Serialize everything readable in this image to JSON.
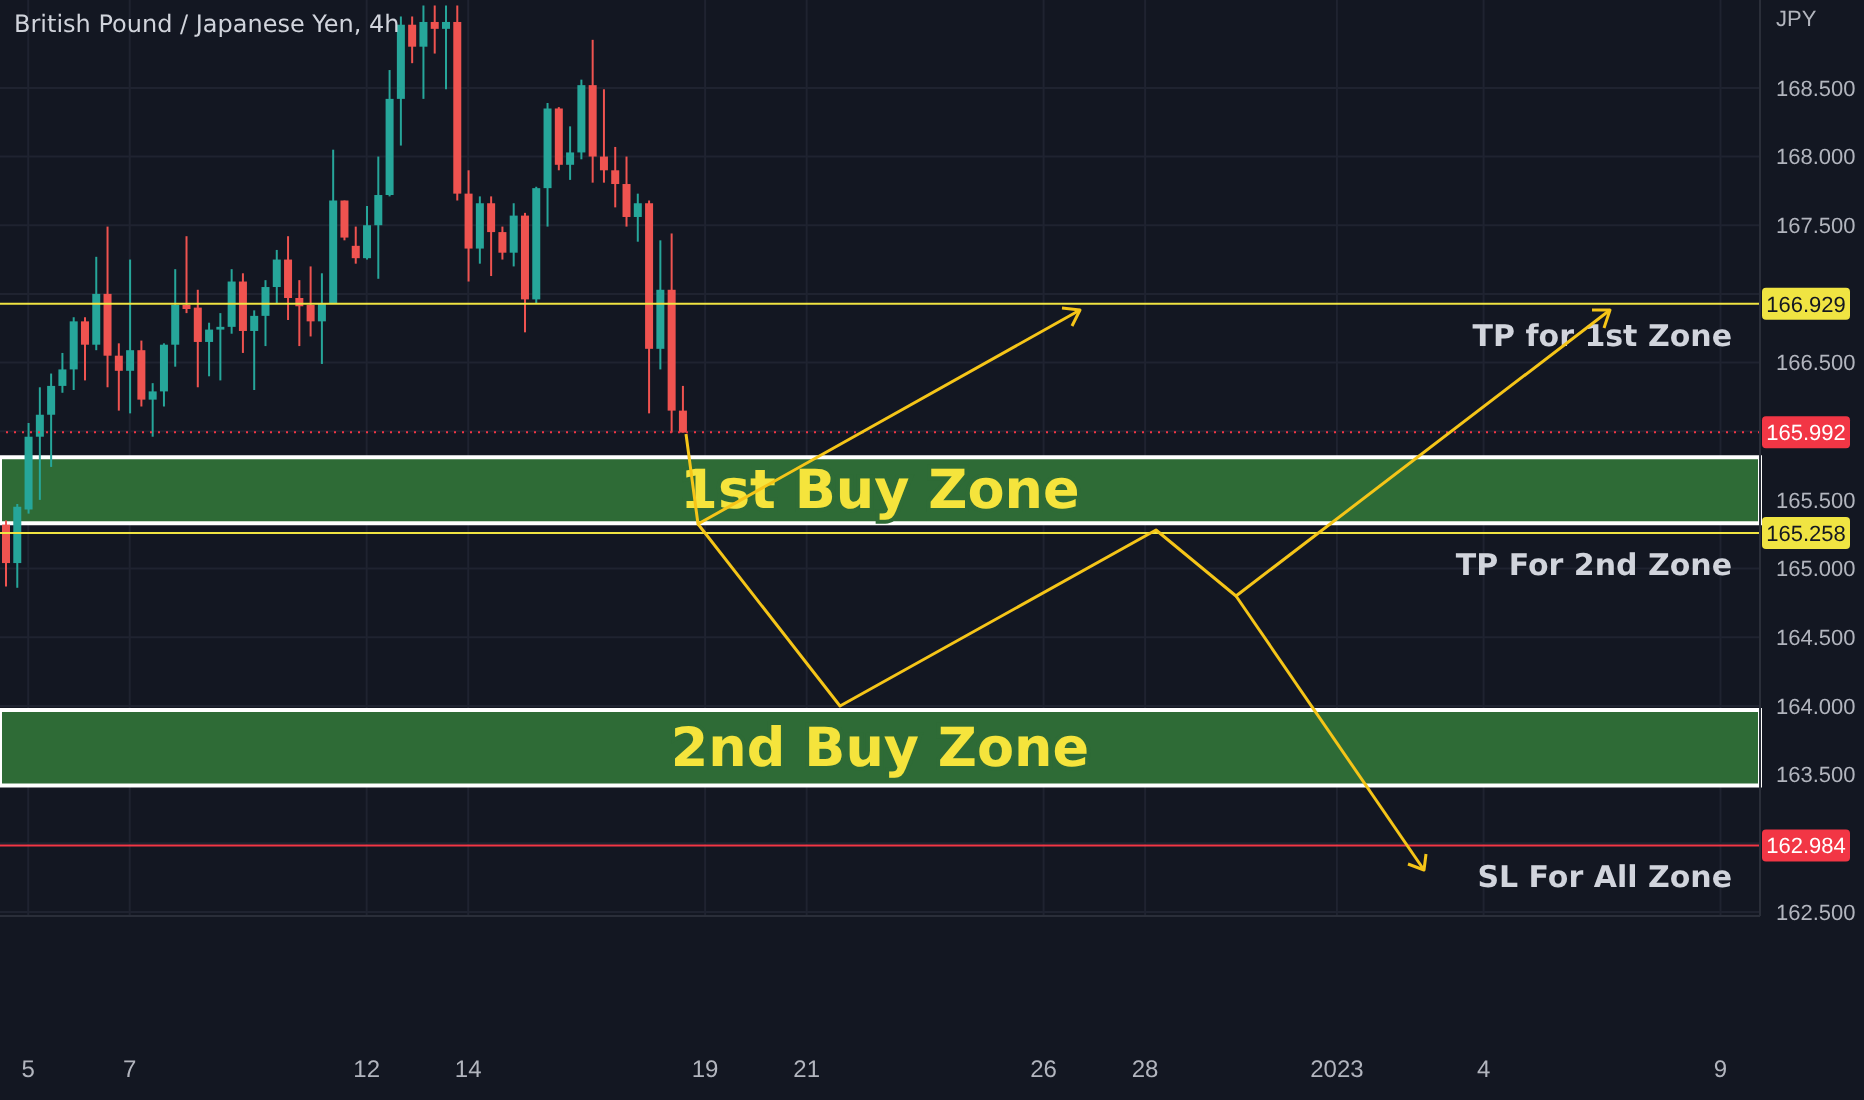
{
  "chart_data": {
    "type": "candlestick",
    "title": "British Pound / Japanese Yen, 4h",
    "ylabel": "JPY",
    "categories": [
      null,
      null,
      "5",
      null,
      null,
      null,
      null,
      null,
      null,
      null,
      null,
      "7",
      null,
      null,
      null,
      null,
      null,
      null,
      null,
      null,
      null,
      null,
      null,
      null,
      null,
      null,
      null,
      null,
      null,
      null,
      null,
      null,
      "12",
      null,
      null,
      null,
      null,
      null,
      null,
      null,
      null,
      "14",
      null,
      null,
      null,
      null,
      null,
      null,
      null,
      null,
      null,
      null,
      null,
      null,
      null,
      null,
      null,
      null,
      null,
      null,
      null,
      null,
      "19",
      null,
      null,
      null,
      null,
      null,
      null,
      null,
      null,
      "21",
      null,
      null,
      null,
      null,
      null,
      null,
      null,
      null,
      null,
      null,
      null,
      null,
      null,
      null,
      null,
      null,
      null,
      null,
      null,
      null,
      "26",
      null,
      null,
      null,
      null,
      null,
      null,
      null,
      null,
      "28",
      null,
      null,
      null,
      null,
      null,
      null,
      null,
      null,
      null,
      null,
      null,
      null,
      null,
      null,
      null,
      null,
      "2023",
      null,
      null,
      null,
      null,
      null,
      null,
      null,
      null,
      null,
      null,
      null,
      null,
      "4",
      null,
      null,
      null,
      null,
      null,
      null,
      null,
      null,
      null,
      null,
      null,
      null,
      null,
      null,
      null,
      null,
      null,
      null,
      null,
      null,
      "9",
      null,
      null,
      null
    ],
    "ohlc": [
      [
        165.32,
        165.35,
        164.87,
        165.04
      ],
      [
        165.04,
        165.47,
        164.86,
        165.45
      ],
      [
        165.43,
        166.06,
        165.4,
        165.96
      ],
      [
        165.96,
        166.32,
        165.5,
        166.12
      ],
      [
        166.12,
        166.42,
        165.74,
        166.33
      ],
      [
        166.33,
        166.57,
        166.28,
        166.45
      ],
      [
        166.45,
        166.83,
        166.3,
        166.8
      ],
      [
        166.8,
        166.83,
        166.37,
        166.63
      ],
      [
        166.63,
        167.27,
        166.59,
        167.0
      ],
      [
        167.0,
        167.49,
        166.32,
        166.55
      ],
      [
        166.55,
        166.64,
        166.15,
        166.44
      ],
      [
        166.44,
        167.25,
        166.13,
        166.59
      ],
      [
        166.59,
        166.66,
        166.18,
        166.23
      ],
      [
        166.23,
        166.35,
        165.96,
        166.29
      ],
      [
        166.29,
        166.64,
        166.18,
        166.63
      ],
      [
        166.63,
        167.18,
        166.47,
        166.92
      ],
      [
        166.92,
        167.42,
        166.86,
        166.89
      ],
      [
        166.9,
        167.03,
        166.32,
        166.65
      ],
      [
        166.65,
        166.79,
        166.4,
        166.74
      ],
      [
        166.74,
        166.86,
        166.37,
        166.76
      ],
      [
        166.76,
        167.18,
        166.71,
        167.09
      ],
      [
        167.09,
        167.15,
        166.57,
        166.73
      ],
      [
        166.73,
        166.88,
        166.3,
        166.84
      ],
      [
        166.84,
        167.1,
        166.62,
        167.05
      ],
      [
        167.05,
        167.32,
        166.93,
        167.25
      ],
      [
        167.25,
        167.42,
        166.81,
        166.97
      ],
      [
        166.97,
        167.1,
        166.62,
        166.91
      ],
      [
        166.92,
        167.2,
        166.69,
        166.8
      ],
      [
        166.8,
        167.15,
        166.49,
        166.93
      ],
      [
        166.93,
        168.05,
        166.93,
        167.68
      ],
      [
        167.68,
        167.68,
        167.39,
        167.41
      ],
      [
        167.35,
        167.49,
        167.22,
        167.26
      ],
      [
        167.26,
        167.64,
        167.25,
        167.5
      ],
      [
        167.5,
        168.0,
        167.11,
        167.72
      ],
      [
        167.72,
        168.63,
        167.71,
        168.42
      ],
      [
        168.42,
        169.02,
        168.08,
        168.96
      ],
      [
        168.96,
        169.02,
        168.68,
        168.8
      ],
      [
        168.8,
        169.1,
        168.42,
        168.98
      ],
      [
        168.98,
        169.1,
        168.75,
        168.93
      ],
      [
        168.93,
        169.1,
        168.49,
        168.98
      ],
      [
        168.98,
        169.1,
        167.68,
        167.73
      ],
      [
        167.73,
        167.9,
        167.09,
        167.33
      ],
      [
        167.33,
        167.71,
        167.22,
        167.66
      ],
      [
        167.66,
        167.71,
        167.13,
        167.45
      ],
      [
        167.45,
        167.49,
        167.25,
        167.3
      ],
      [
        167.3,
        167.66,
        167.2,
        167.57
      ],
      [
        167.57,
        167.59,
        166.72,
        166.96
      ],
      [
        166.96,
        167.78,
        166.93,
        167.77
      ],
      [
        167.77,
        168.39,
        167.49,
        168.35
      ],
      [
        168.35,
        168.36,
        167.9,
        167.94
      ],
      [
        167.94,
        168.22,
        167.83,
        168.03
      ],
      [
        168.03,
        168.56,
        167.98,
        168.52
      ],
      [
        168.52,
        168.85,
        167.81,
        168.0
      ],
      [
        168.0,
        168.49,
        167.81,
        167.9
      ],
      [
        167.9,
        168.07,
        167.63,
        167.8
      ],
      [
        167.8,
        168.0,
        167.49,
        167.56
      ],
      [
        167.56,
        167.73,
        167.38,
        167.66
      ],
      [
        167.66,
        167.68,
        166.13,
        166.6
      ],
      [
        166.6,
        167.39,
        166.45,
        167.03
      ],
      [
        167.03,
        167.44,
        165.99,
        166.15
      ],
      [
        166.15,
        166.33,
        165.99,
        165.99
      ],
      null,
      null,
      null,
      null,
      null,
      null,
      null,
      null,
      null,
      null,
      null,
      null,
      null,
      null,
      null,
      null,
      null,
      null,
      null,
      null,
      null,
      null,
      null,
      null,
      null,
      null,
      null,
      null,
      null,
      null,
      null,
      null,
      null,
      null,
      null,
      null,
      null,
      null,
      null,
      null,
      null,
      null,
      null,
      null,
      null,
      null,
      null,
      null,
      null,
      null,
      null,
      null,
      null,
      null,
      null,
      null,
      null,
      null,
      null,
      null,
      null,
      null,
      null,
      null,
      null,
      null,
      null,
      null,
      null,
      null,
      null,
      null,
      null,
      null,
      null,
      null,
      null,
      null,
      null,
      null,
      null,
      null,
      null,
      null,
      null,
      null,
      null,
      null,
      null,
      null,
      null,
      null,
      null,
      null,
      null
    ],
    "colors": [
      "#ef5350",
      "#26a69a",
      "#26a69a",
      "#26a69a",
      "#26a69a",
      "#26a69a",
      "#26a69a",
      "#ef5350",
      "#26a69a",
      "#ef5350",
      "#ef5350",
      "#26a69a",
      "#ef5350",
      "#26a69a",
      "#26a69a",
      "#26a69a",
      "#ef5350",
      "#ef5350",
      "#26a69a",
      "#26a69a",
      "#26a69a",
      "#ef5350",
      "#26a69a",
      "#26a69a",
      "#26a69a",
      "#ef5350",
      "#ef5350",
      "#ef5350",
      "#26a69a",
      "#26a69a",
      "#ef5350",
      "#ef5350",
      "#26a69a",
      "#26a69a",
      "#26a69a",
      "#26a69a",
      "#ef5350",
      "#26a69a",
      "#ef5350",
      "#26a69a",
      "#ef5350",
      "#ef5350",
      "#26a69a",
      "#ef5350",
      "#ef5350",
      "#26a69a",
      "#ef5350",
      "#26a69a",
      "#26a69a",
      "#ef5350",
      "#26a69a",
      "#26a69a",
      "#ef5350",
      "#ef5350",
      "#ef5350",
      "#ef5350",
      "#26a69a",
      "#ef5350",
      "#26a69a",
      "#ef5350",
      "#ef5350",
      null,
      null,
      null,
      null,
      null,
      null,
      null,
      null,
      null,
      null,
      null,
      null,
      null,
      null,
      null,
      null,
      null,
      null,
      null,
      null,
      null,
      null,
      null,
      null,
      null,
      null,
      null,
      null,
      null,
      null,
      null,
      null,
      null,
      null,
      null,
      null,
      null,
      null,
      null,
      null,
      null,
      null,
      null,
      null,
      null,
      null,
      null,
      null,
      null,
      null,
      null,
      null,
      null,
      null,
      null,
      null,
      null,
      null,
      null,
      null,
      null,
      null,
      null,
      null,
      null,
      null,
      null,
      null,
      null,
      null,
      null,
      null,
      null,
      null,
      null,
      null,
      null,
      null,
      null,
      null,
      null,
      null,
      null,
      null,
      null,
      null,
      null,
      null,
      null,
      null,
      null,
      null,
      null,
      null,
      null
    ],
    "ylim": [
      162.47,
      169.14
    ],
    "yticks": [
      {
        "value": 162.5,
        "label": "162.500"
      },
      {
        "value": 163,
        "label": null
      },
      {
        "value": 163.5,
        "label": "163.500"
      },
      {
        "value": 164,
        "label": "164.000"
      },
      {
        "value": 164.5,
        "label": "164.500"
      },
      {
        "value": 165,
        "label": "165.000"
      },
      {
        "value": 165.5,
        "label": "165.500"
      },
      {
        "value": 166,
        "label": null
      },
      {
        "value": 166.5,
        "label": "166.500"
      },
      {
        "value": 167,
        "label": null
      },
      {
        "value": 167.5,
        "label": "167.500"
      },
      {
        "value": 168,
        "label": "168.000"
      },
      {
        "value": 168.5,
        "label": "168.500"
      }
    ],
    "grid": true,
    "annotations": [
      {
        "text": "166.929",
        "y": 166.929
      },
      {
        "text": "165.992",
        "y": 165.992
      },
      {
        "text": "165.258",
        "y": 165.258
      },
      {
        "text": "162.984",
        "y": 162.984
      }
    ],
    "ref_lines": [
      {
        "axis": "y",
        "value": 166.929,
        "label": "TP for 1st Zone",
        "color": "#f0e442",
        "line_style": "solid"
      },
      {
        "axis": "y",
        "value": 165.258,
        "label": "TP For 2nd Zone",
        "color": "#f0e442",
        "line_style": "solid"
      },
      {
        "axis": "y",
        "value": 165.992,
        "color": "#f23645",
        "line_style": "dotted"
      },
      {
        "axis": "y",
        "value": 162.984,
        "label": "SL For All Zone",
        "color": "#f23645",
        "line_style": "solid"
      }
    ],
    "bands": [
      {
        "axis": "y",
        "from": 165.33,
        "to": 165.81,
        "label": "1st Buy Zone",
        "color": "#2e6b36"
      },
      {
        "axis": "y",
        "from": 163.42,
        "to": 163.97,
        "label": "2nd Buy Zone",
        "color": "#2e6b36"
      }
    ]
  }
}
